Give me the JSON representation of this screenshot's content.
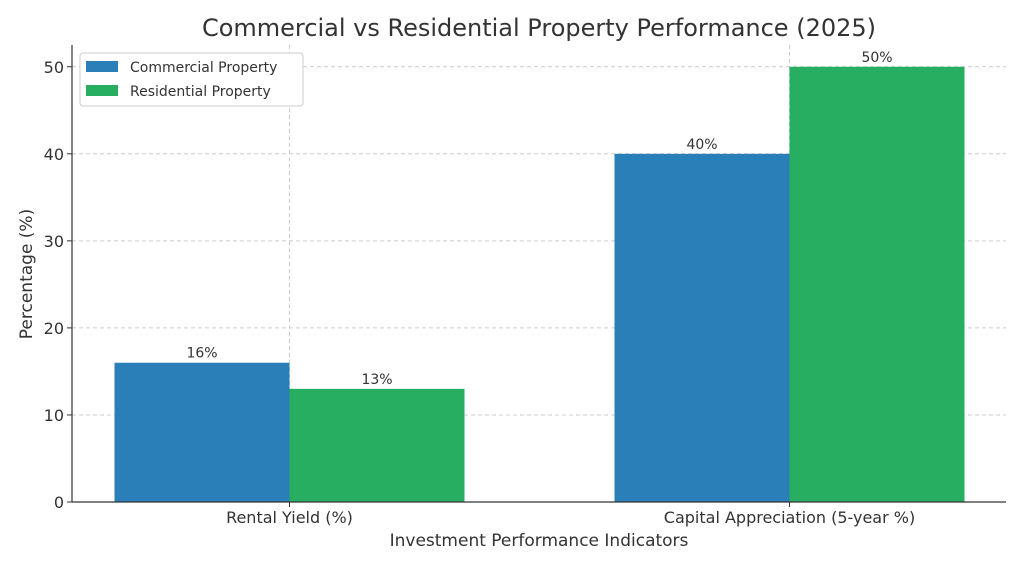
{
  "chart_data": {
    "type": "bar",
    "title": "Commercial vs Residential Property Performance (2025)",
    "xlabel": "Investment Performance Indicators",
    "ylabel": "Percentage (%)",
    "categories": [
      "Rental Yield (%)",
      "Capital Appreciation (5-year %)"
    ],
    "series": [
      {
        "name": "Commercial Property",
        "values": [
          16,
          40
        ],
        "color": "#2b7fb8",
        "labels": [
          "16%",
          "40%"
        ]
      },
      {
        "name": "Residential Property",
        "values": [
          13,
          50
        ],
        "color": "#28ae60",
        "labels": [
          "13%",
          "50%"
        ]
      }
    ],
    "ylim": [
      0,
      52.5
    ],
    "yticks": [
      0,
      10,
      20,
      30,
      40,
      50
    ],
    "grid": true,
    "legend_position": "top-left"
  }
}
